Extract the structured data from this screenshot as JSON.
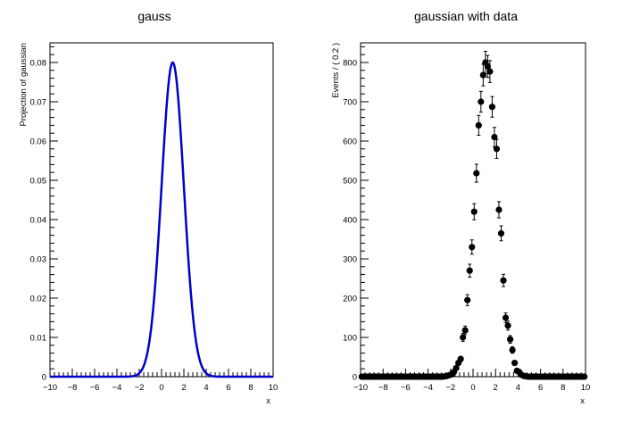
{
  "chart_data": [
    {
      "type": "line",
      "title": "gauss",
      "xlabel": "x",
      "ylabel": "Projection of gaussian",
      "xlim": [
        -10,
        10
      ],
      "ylim": [
        0,
        0.085
      ],
      "x_ticks": [
        -10,
        -8,
        -6,
        -4,
        -2,
        0,
        2,
        4,
        6,
        8,
        10
      ],
      "x_tick_labels": [
        "−10",
        "−8",
        "−6",
        "−4",
        "−2",
        "0",
        "2",
        "4",
        "6",
        "8",
        "10"
      ],
      "y_ticks": [
        0,
        0.01,
        0.02,
        0.03,
        0.04,
        0.05,
        0.06,
        0.07,
        0.08
      ],
      "y_tick_labels": [
        "0",
        "0.01",
        "0.02",
        "0.03",
        "0.04",
        "0.05",
        "0.06",
        "0.07",
        "0.08"
      ],
      "line_color": "#0000cc",
      "curve": {
        "function": "gaussian",
        "mean": 1,
        "sigma": 1,
        "peak": 0.08
      }
    },
    {
      "type": "scatter",
      "title": "gaussian with data",
      "xlabel": "x",
      "ylabel": "Events / ( 0.2 )",
      "xlim": [
        -10,
        10
      ],
      "ylim": [
        0,
        850
      ],
      "x_ticks": [
        -10,
        -8,
        -6,
        -4,
        -2,
        0,
        2,
        4,
        6,
        8,
        10
      ],
      "x_tick_labels": [
        "−10",
        "−8",
        "−6",
        "−4",
        "−2",
        "0",
        "2",
        "4",
        "6",
        "8",
        "10"
      ],
      "y_ticks": [
        0,
        100,
        200,
        300,
        400,
        500,
        600,
        700,
        800
      ],
      "y_tick_labels": [
        "0",
        "100",
        "200",
        "300",
        "400",
        "500",
        "600",
        "700",
        "800"
      ],
      "marker_color": "#000000",
      "points": [
        {
          "x": -9.9,
          "y": 0
        },
        {
          "x": -9.7,
          "y": 0
        },
        {
          "x": -9.5,
          "y": 0
        },
        {
          "x": -9.3,
          "y": 0
        },
        {
          "x": -9.1,
          "y": 0
        },
        {
          "x": -8.9,
          "y": 0
        },
        {
          "x": -8.7,
          "y": 0
        },
        {
          "x": -8.5,
          "y": 0
        },
        {
          "x": -8.3,
          "y": 0
        },
        {
          "x": -8.1,
          "y": 0
        },
        {
          "x": -7.9,
          "y": 0
        },
        {
          "x": -7.7,
          "y": 0
        },
        {
          "x": -7.5,
          "y": 0
        },
        {
          "x": -7.3,
          "y": 0
        },
        {
          "x": -7.1,
          "y": 0
        },
        {
          "x": -6.9,
          "y": 0
        },
        {
          "x": -6.7,
          "y": 0
        },
        {
          "x": -6.5,
          "y": 0
        },
        {
          "x": -6.3,
          "y": 0
        },
        {
          "x": -6.1,
          "y": 0
        },
        {
          "x": -5.9,
          "y": 0
        },
        {
          "x": -5.7,
          "y": 0
        },
        {
          "x": -5.5,
          "y": 0
        },
        {
          "x": -5.3,
          "y": 0
        },
        {
          "x": -5.1,
          "y": 0
        },
        {
          "x": -4.9,
          "y": 0
        },
        {
          "x": -4.7,
          "y": 0
        },
        {
          "x": -4.5,
          "y": 0
        },
        {
          "x": -4.3,
          "y": 0
        },
        {
          "x": -4.1,
          "y": 0
        },
        {
          "x": -3.9,
          "y": 0
        },
        {
          "x": -3.7,
          "y": 0
        },
        {
          "x": -3.5,
          "y": 0
        },
        {
          "x": -3.3,
          "y": 0
        },
        {
          "x": -3.1,
          "y": 0
        },
        {
          "x": -2.9,
          "y": 0
        },
        {
          "x": -2.7,
          "y": 0
        },
        {
          "x": -2.5,
          "y": 1
        },
        {
          "x": -2.3,
          "y": 2
        },
        {
          "x": -2.1,
          "y": 4
        },
        {
          "x": -1.9,
          "y": 6
        },
        {
          "x": -1.7,
          "y": 12
        },
        {
          "x": -1.5,
          "y": 22
        },
        {
          "x": -1.3,
          "y": 35
        },
        {
          "x": -1.1,
          "y": 45
        },
        {
          "x": -0.9,
          "y": 100
        },
        {
          "x": -0.7,
          "y": 118
        },
        {
          "x": -0.5,
          "y": 195
        },
        {
          "x": -0.3,
          "y": 270
        },
        {
          "x": -0.1,
          "y": 330
        },
        {
          "x": 0.1,
          "y": 420
        },
        {
          "x": 0.3,
          "y": 518
        },
        {
          "x": 0.5,
          "y": 640
        },
        {
          "x": 0.7,
          "y": 700
        },
        {
          "x": 0.9,
          "y": 768
        },
        {
          "x": 1.1,
          "y": 800
        },
        {
          "x": 1.3,
          "y": 790
        },
        {
          "x": 1.5,
          "y": 777
        },
        {
          "x": 1.7,
          "y": 687
        },
        {
          "x": 1.9,
          "y": 610
        },
        {
          "x": 2.1,
          "y": 580
        },
        {
          "x": 2.3,
          "y": 425
        },
        {
          "x": 2.5,
          "y": 365
        },
        {
          "x": 2.7,
          "y": 245
        },
        {
          "x": 2.9,
          "y": 150
        },
        {
          "x": 3.1,
          "y": 130
        },
        {
          "x": 3.3,
          "y": 95
        },
        {
          "x": 3.5,
          "y": 68
        },
        {
          "x": 3.7,
          "y": 35
        },
        {
          "x": 3.9,
          "y": 15
        },
        {
          "x": 4.1,
          "y": 12
        },
        {
          "x": 4.3,
          "y": 5
        },
        {
          "x": 4.5,
          "y": 2
        },
        {
          "x": 4.7,
          "y": 1
        },
        {
          "x": 4.9,
          "y": 0
        },
        {
          "x": 5.1,
          "y": 0
        },
        {
          "x": 5.3,
          "y": 0
        },
        {
          "x": 5.5,
          "y": 0
        },
        {
          "x": 5.7,
          "y": 0
        },
        {
          "x": 5.9,
          "y": 0
        },
        {
          "x": 6.1,
          "y": 0
        },
        {
          "x": 6.3,
          "y": 0
        },
        {
          "x": 6.5,
          "y": 0
        },
        {
          "x": 6.7,
          "y": 0
        },
        {
          "x": 6.9,
          "y": 0
        },
        {
          "x": 7.1,
          "y": 0
        },
        {
          "x": 7.3,
          "y": 0
        },
        {
          "x": 7.5,
          "y": 0
        },
        {
          "x": 7.7,
          "y": 0
        },
        {
          "x": 7.9,
          "y": 0
        },
        {
          "x": 8.1,
          "y": 0
        },
        {
          "x": 8.3,
          "y": 0
        },
        {
          "x": 8.5,
          "y": 0
        },
        {
          "x": 8.7,
          "y": 0
        },
        {
          "x": 8.9,
          "y": 0
        },
        {
          "x": 9.1,
          "y": 0
        },
        {
          "x": 9.3,
          "y": 0
        },
        {
          "x": 9.5,
          "y": 0
        },
        {
          "x": 9.7,
          "y": 0
        },
        {
          "x": 9.9,
          "y": 0
        }
      ]
    }
  ]
}
